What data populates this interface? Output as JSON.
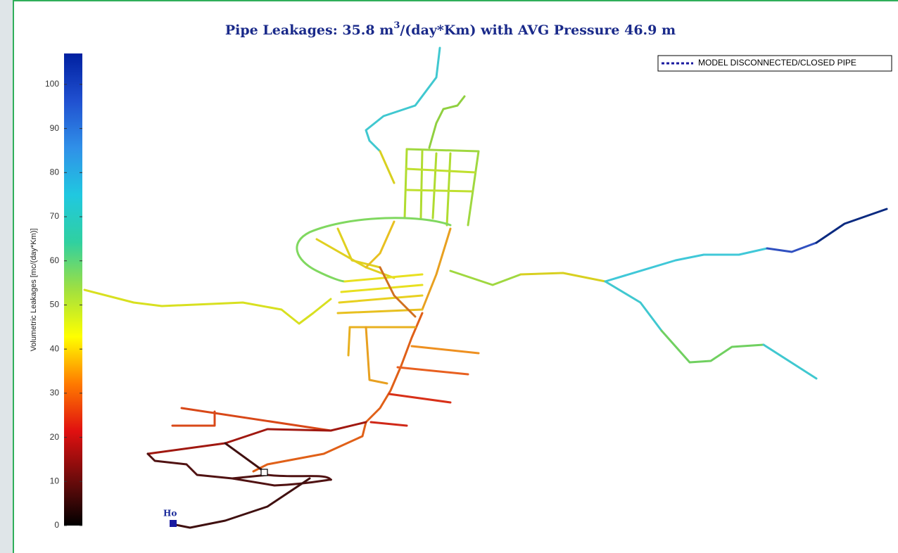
{
  "title": {
    "before_superscript": "Pipe Leakages: 35.8 m",
    "superscript": "3",
    "after_superscript": "/(day*Km) with AVG Pressure 46.9 m"
  },
  "colorbar": {
    "label": "Volumetric Leakages [mc/(day*Km)]",
    "lim": [
      0,
      107
    ],
    "ticks": [
      0,
      10,
      20,
      30,
      40,
      50,
      60,
      70,
      80,
      90,
      100
    ]
  },
  "legend": {
    "label": "MODEL DISCONNECTED/CLOSED PIPE"
  },
  "map_labels": [
    "Ho"
  ]
}
